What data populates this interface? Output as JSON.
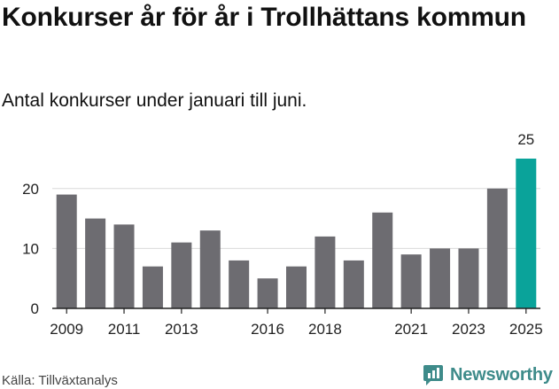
{
  "header": {
    "title": "Konkurser år för år i Trollhättans kommun",
    "subtitle": "Antal konkurser under januari till juni."
  },
  "footer": {
    "source": "Källa: Tillväxtanalys",
    "brand": "Newsworthy",
    "brand_icon": "newsworthy-logo-icon"
  },
  "colors": {
    "bar": "#6d6c71",
    "highlight": "#0aa39a",
    "grid": "#d9d9d9",
    "axis": "#222222",
    "brand": "#3e8b8a"
  },
  "chart_data": {
    "type": "bar",
    "categories": [
      "2009",
      "2010",
      "2011",
      "2012",
      "2013",
      "2014",
      "2015",
      "2016",
      "2017",
      "2018",
      "2019",
      "2020",
      "2021",
      "2022",
      "2023",
      "2024",
      "2025"
    ],
    "values": [
      19,
      15,
      14,
      7,
      11,
      13,
      8,
      5,
      7,
      12,
      8,
      16,
      9,
      10,
      10,
      20,
      25
    ],
    "highlight_index": 16,
    "data_labels": [
      {
        "index": 16,
        "text": "25"
      }
    ],
    "x_tick_labels": [
      "2009",
      "2011",
      "2013",
      "2016",
      "2018",
      "2021",
      "2023",
      "2025"
    ],
    "y_ticks": [
      0,
      10,
      20
    ],
    "ylim": [
      0,
      25
    ],
    "grid": true,
    "xlabel": "",
    "ylabel": ""
  }
}
